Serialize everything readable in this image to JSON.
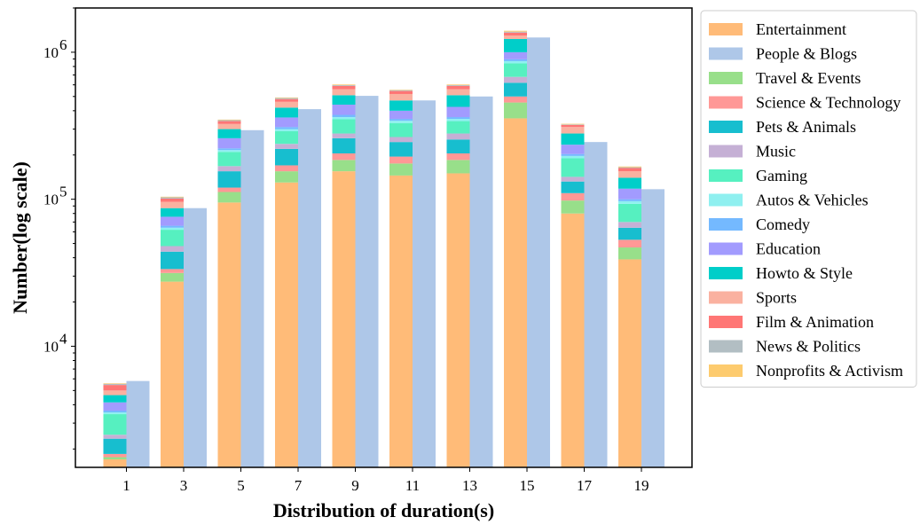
{
  "chart_data": {
    "type": "bar",
    "subtype": "stacked-plus-total",
    "xlabel": "Distribution of duration(s)",
    "ylabel": "Number(log scale)",
    "yscale": "log",
    "ylim": [
      1500,
      2000000
    ],
    "yticks": [
      {
        "value": 10000,
        "base": "10",
        "exp": "4"
      },
      {
        "value": 100000,
        "base": "10",
        "exp": "5"
      },
      {
        "value": 1000000,
        "base": "10",
        "exp": "6"
      }
    ],
    "categories": [
      "1",
      "3",
      "5",
      "7",
      "9",
      "11",
      "13",
      "15",
      "17",
      "19"
    ],
    "legend_position": "outside-right",
    "grid": false,
    "stack_series": [
      {
        "name": "Entertainment",
        "color": "#ffbb78",
        "values": [
          1700,
          27500,
          95000,
          130000,
          155000,
          145000,
          150000,
          355000,
          80000,
          39000
        ]
      },
      {
        "name": "Travel & Events",
        "color": "#98df8a",
        "values": [
          1760,
          31500,
          112000,
          155000,
          185000,
          175000,
          185000,
          455000,
          98000,
          47000
        ]
      },
      {
        "name": "Science & Technology",
        "color": "#ff9896",
        "values": [
          1850,
          33500,
          120000,
          170000,
          205000,
          195000,
          205000,
          500000,
          110000,
          53000
        ]
      },
      {
        "name": "Pets & Animals",
        "color": "#17becf",
        "values": [
          2350,
          44000,
          155000,
          220000,
          260000,
          245000,
          255000,
          620000,
          132000,
          64000
        ]
      },
      {
        "name": "Music",
        "color": "#c5b0d5",
        "values": [
          2500,
          48000,
          168000,
          238000,
          280000,
          265000,
          280000,
          680000,
          142000,
          70000
        ]
      },
      {
        "name": "Gaming",
        "color": "#56f0c0",
        "values": [
          3450,
          62000,
          210000,
          290000,
          350000,
          330000,
          340000,
          840000,
          190000,
          93000
        ]
      },
      {
        "name": "Autos & Vehicles",
        "color": "#8ff0f0",
        "values": [
          3550,
          64000,
          216000,
          300000,
          362000,
          342000,
          352000,
          870000,
          197000,
          97000
        ]
      },
      {
        "name": "Comedy",
        "color": "#74b9ff",
        "values": [
          3650,
          66000,
          222000,
          310000,
          375000,
          352000,
          362000,
          895000,
          203000,
          100000
        ]
      },
      {
        "name": "Education",
        "color": "#a29bfe",
        "values": [
          4150,
          76000,
          260000,
          360000,
          440000,
          400000,
          425000,
          1000000,
          235000,
          118000
        ]
      },
      {
        "name": "Howto & Style",
        "color": "#00cec9",
        "values": [
          4650,
          87000,
          300000,
          420000,
          510000,
          470000,
          510000,
          1230000,
          280000,
          140000
        ]
      },
      {
        "name": "Sports",
        "color": "#fab1a0",
        "values": [
          5000,
          96000,
          325000,
          460000,
          560000,
          520000,
          560000,
          1300000,
          310000,
          155000
        ]
      },
      {
        "name": "Film & Animation",
        "color": "#ff7675",
        "values": [
          5450,
          101000,
          340000,
          480000,
          590000,
          545000,
          590000,
          1360000,
          320000,
          163000
        ]
      },
      {
        "name": "News & Politics",
        "color": "#b2bec3",
        "values": [
          5550,
          103000,
          345000,
          488000,
          598000,
          552000,
          598000,
          1380000,
          323000,
          165000
        ]
      },
      {
        "name": "Nonprofits & Activism",
        "color": "#fdcb6e",
        "values": [
          5600,
          104000,
          348000,
          492000,
          604000,
          556000,
          604000,
          1400000,
          326000,
          167000
        ]
      }
    ],
    "total_series": {
      "name": "People & Blogs",
      "color": "#aec7e8",
      "values": [
        5800,
        87000,
        295000,
        410000,
        505000,
        470000,
        500000,
        1260000,
        245000,
        117000
      ]
    },
    "legend": [
      {
        "name": "Entertainment",
        "color": "#ffbb78"
      },
      {
        "name": "People & Blogs",
        "color": "#aec7e8"
      },
      {
        "name": "Travel & Events",
        "color": "#98df8a"
      },
      {
        "name": "Science & Technology",
        "color": "#ff9896"
      },
      {
        "name": "Pets & Animals",
        "color": "#17becf"
      },
      {
        "name": "Music",
        "color": "#c5b0d5"
      },
      {
        "name": "Gaming",
        "color": "#56f0c0"
      },
      {
        "name": "Autos & Vehicles",
        "color": "#8ff0f0"
      },
      {
        "name": "Comedy",
        "color": "#74b9ff"
      },
      {
        "name": "Education",
        "color": "#a29bfe"
      },
      {
        "name": "Howto & Style",
        "color": "#00cec9"
      },
      {
        "name": "Sports",
        "color": "#fab1a0"
      },
      {
        "name": "Film & Animation",
        "color": "#ff7675"
      },
      {
        "name": "News & Politics",
        "color": "#b2bec3"
      },
      {
        "name": "Nonprofits & Activism",
        "color": "#fdcb6e"
      }
    ]
  }
}
